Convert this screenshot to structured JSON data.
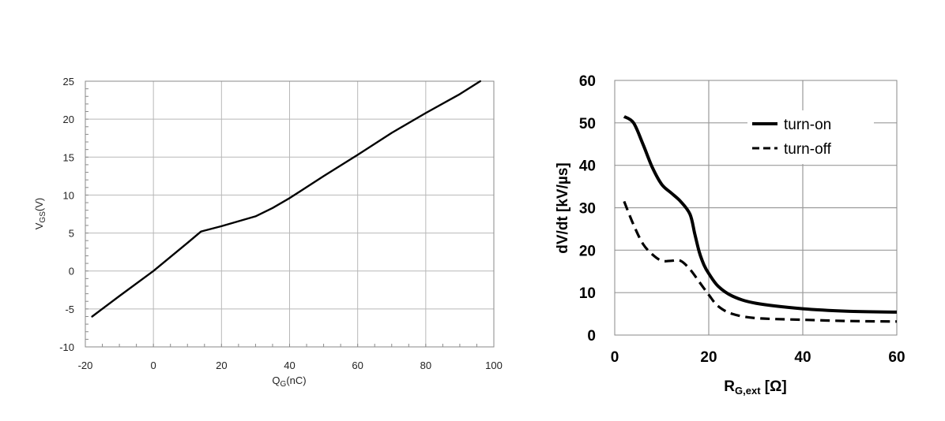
{
  "chart_data": [
    {
      "type": "line",
      "title": "",
      "xlabel": {
        "main": "Q",
        "sub": "G",
        "rest": "(nC)"
      },
      "ylabel": {
        "main": "V",
        "sub": "GS",
        "rest": "(V)"
      },
      "xlim": [
        -20,
        100
      ],
      "ylim": [
        -10,
        25
      ],
      "xticks": [
        "-20",
        "0",
        "20",
        "40",
        "60",
        "80",
        "100"
      ],
      "yticks": [
        "-10",
        "-5",
        "0",
        "5",
        "10",
        "15",
        "20",
        "25"
      ],
      "grid": true,
      "series": [
        {
          "color": "#000000",
          "x": [
            -18,
            -10,
            0,
            10,
            14,
            20,
            30,
            35,
            40,
            50,
            60,
            70,
            80,
            90,
            96
          ],
          "y": [
            -6,
            -3.3,
            0,
            3.7,
            5.2,
            5.9,
            7.2,
            8.3,
            9.6,
            12.5,
            15.3,
            18.2,
            20.8,
            23.3,
            25
          ]
        }
      ]
    },
    {
      "type": "line",
      "title": "",
      "xlabel": {
        "main": "R",
        "sub": "G,ext",
        "rest": " [Ω]"
      },
      "ylabel": "dV/dt [kV/µs]",
      "xlim": [
        0,
        60
      ],
      "ylim": [
        0,
        60
      ],
      "xticks": [
        "0",
        "20",
        "40",
        "60"
      ],
      "yticks": [
        "0",
        "10",
        "20",
        "30",
        "40",
        "50",
        "60"
      ],
      "grid": true,
      "legend_position": "top-right",
      "series": [
        {
          "name": "turn-on",
          "style": "solid",
          "color": "#000000",
          "x": [
            2,
            4,
            6,
            8,
            10,
            12,
            14,
            16,
            17,
            18,
            19,
            20,
            22,
            25,
            30,
            40,
            50,
            60
          ],
          "y": [
            51.5,
            50,
            45,
            39.5,
            35.5,
            33.5,
            31.5,
            28.5,
            24,
            19.5,
            16.5,
            14.5,
            11.5,
            9.2,
            7.5,
            6.2,
            5.6,
            5.4
          ]
        },
        {
          "name": "turn-off",
          "style": "dashed",
          "color": "#000000",
          "x": [
            2,
            4,
            6,
            8,
            10,
            12,
            14,
            16,
            18,
            20,
            22,
            25,
            30,
            40,
            50,
            60
          ],
          "y": [
            31.5,
            26,
            21.5,
            19,
            17.5,
            17.5,
            17.5,
            15.5,
            12.5,
            9.5,
            6.8,
            5,
            4,
            3.6,
            3.3,
            3.2
          ]
        }
      ]
    }
  ]
}
